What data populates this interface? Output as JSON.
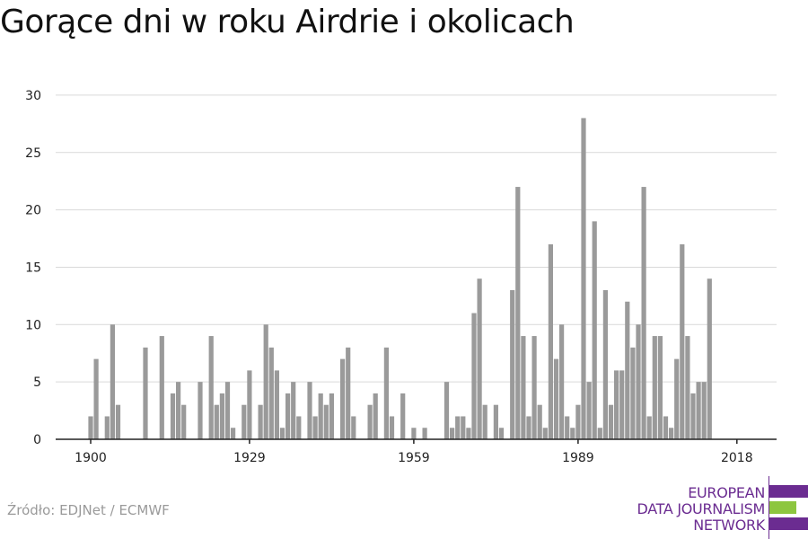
{
  "chart_data": {
    "type": "bar",
    "title": "Gorące dni w roku Airdrie i okolicach",
    "x_range": [
      1900,
      2018
    ],
    "y_range": [
      0,
      30
    ],
    "y_ticks": [
      0,
      5,
      10,
      15,
      20,
      25,
      30
    ],
    "x_tick_labels": [
      "1900",
      "1929",
      "1959",
      "1989",
      "2018"
    ],
    "grid": true,
    "bar_color": "#9a9a9a",
    "series": [
      {
        "x": [
          1900,
          1901,
          1903,
          1904,
          1905,
          1910,
          1913,
          1915,
          1916,
          1917,
          1920,
          1922,
          1923,
          1924,
          1925,
          1926,
          1928,
          1929,
          1931,
          1932,
          1933,
          1934,
          1935,
          1936,
          1937,
          1938,
          1940,
          1941,
          1942,
          1943,
          1944,
          1946,
          1947,
          1948,
          1951,
          1952,
          1954,
          1955,
          1957,
          1959,
          1961,
          1965,
          1966,
          1967,
          1968,
          1969,
          1970,
          1971,
          1972,
          1974,
          1975,
          1977,
          1978,
          1979,
          1980,
          1981,
          1982,
          1983,
          1984,
          1985,
          1986,
          1987,
          1988,
          1989,
          1990,
          1991,
          1992,
          1993,
          1994,
          1995,
          1996,
          1997,
          1998,
          1999,
          2000,
          2001,
          2002,
          2003,
          2004,
          2005,
          2006,
          2007,
          2008,
          2009,
          2010,
          2011,
          2012,
          2013,
          2014,
          2015
        ],
        "values": [
          2,
          7,
          2,
          10,
          3,
          8,
          9,
          4,
          5,
          3,
          5,
          9,
          3,
          4,
          5,
          1,
          3,
          6,
          3,
          10,
          8,
          6,
          1,
          4,
          5,
          2,
          5,
          2,
          4,
          3,
          4,
          7,
          8,
          2,
          3,
          4,
          8,
          2,
          4,
          1,
          1,
          5,
          1,
          2,
          2,
          1,
          11,
          14,
          3,
          3,
          1,
          13,
          22,
          9,
          2,
          9,
          3,
          1,
          17,
          7,
          10,
          2,
          1,
          3,
          28,
          5,
          19,
          1,
          13,
          3,
          6,
          6,
          12,
          8,
          10,
          22,
          2,
          9,
          9,
          2,
          1,
          7,
          17,
          9,
          4,
          5,
          5,
          14,
          0,
          0
        ]
      }
    ]
  },
  "source": "Źródło: EDJNet / ECMWF",
  "logo": {
    "line1": "EUROPEAN",
    "line2": "DATA JOURNALISM",
    "line3": "NETWORK",
    "purple": "#6b2c91",
    "green": "#8dc63f"
  }
}
